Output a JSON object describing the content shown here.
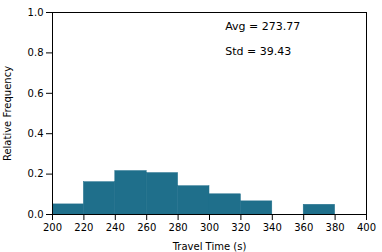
{
  "chart_data": {
    "type": "histogram",
    "bins": [
      200,
      220,
      240,
      260,
      280,
      300,
      320,
      340,
      360,
      380,
      400
    ],
    "values": [
      0.05,
      0.16,
      0.215,
      0.205,
      0.14,
      0.1,
      0.065,
      0.0,
      0.048,
      0.0
    ],
    "color": "#1f6f8b",
    "xlabel": "Travel Time (s)",
    "ylabel": "Relative Frequency",
    "xlim": [
      200,
      400
    ],
    "ylim": [
      0,
      1.0
    ],
    "xticks": [
      200,
      220,
      240,
      260,
      280,
      300,
      320,
      340,
      360,
      380,
      400
    ],
    "yticks": [
      {
        "value": 0,
        "label": "0.0"
      },
      0.2,
      0.4,
      0.6,
      0.8,
      {
        "value": 1,
        "label": "1.0"
      }
    ],
    "annotations": [
      "Avg = 273.77",
      "Std = 39.43"
    ],
    "grid": false
  }
}
